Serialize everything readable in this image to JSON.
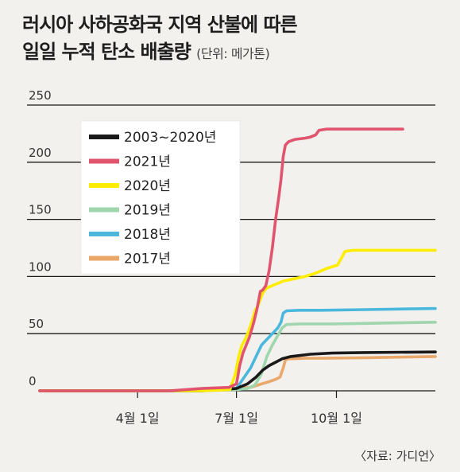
{
  "title_line1": "러시아 사하공화국 지역 산불에 따른",
  "title_line2": "일일 누적 탄소 배출량",
  "title_unit": "(단위: 메가톤)",
  "source": "〈자료: 가디언〉",
  "colors": {
    "background": "#f2f1ee",
    "grid": "#1a1a1a",
    "2003~2020년": "#1a1a1a",
    "2021년": "#e0546e",
    "2020년": "#ffed00",
    "2019년": "#9fd6ad",
    "2018년": "#4ab8dd",
    "2017년": "#e9a86a"
  },
  "chart_data": {
    "type": "line",
    "title": "러시아 사하공화국 지역 산불에 따른 일일 누적 탄소 배출량",
    "ylabel": "",
    "xlabel": "",
    "ylim": [
      0,
      250
    ],
    "yticks": [
      0,
      50,
      100,
      150,
      200,
      250
    ],
    "xlim": [
      1,
      365
    ],
    "xticks": [
      {
        "label": "4월 1일",
        "day": 91
      },
      {
        "label": "7월 1일",
        "day": 182
      },
      {
        "label": "10월 1일",
        "day": 274
      }
    ],
    "grid": true,
    "legend_position": "top-left",
    "series": [
      {
        "name": "2003~2020년",
        "points": [
          [
            1,
            0
          ],
          [
            150,
            0
          ],
          [
            182,
            2
          ],
          [
            192,
            6
          ],
          [
            200,
            12
          ],
          [
            206,
            18
          ],
          [
            212,
            22
          ],
          [
            218,
            25
          ],
          [
            224,
            28
          ],
          [
            232,
            30
          ],
          [
            250,
            32
          ],
          [
            270,
            33
          ],
          [
            300,
            33.5
          ],
          [
            365,
            34
          ]
        ]
      },
      {
        "name": "2021년",
        "points": [
          [
            1,
            0
          ],
          [
            120,
            0
          ],
          [
            150,
            2
          ],
          [
            175,
            3
          ],
          [
            182,
            6
          ],
          [
            185,
            22
          ],
          [
            188,
            33
          ],
          [
            191,
            40
          ],
          [
            194,
            47
          ],
          [
            198,
            60
          ],
          [
            201,
            72
          ],
          [
            204,
            87
          ],
          [
            206,
            88
          ],
          [
            209,
            92
          ],
          [
            212,
            105
          ],
          [
            215,
            125
          ],
          [
            218,
            150
          ],
          [
            221,
            170
          ],
          [
            223,
            185
          ],
          [
            225,
            205
          ],
          [
            227,
            215
          ],
          [
            230,
            218
          ],
          [
            236,
            220
          ],
          [
            245,
            221
          ],
          [
            250,
            222
          ],
          [
            255,
            224
          ],
          [
            258,
            228
          ],
          [
            265,
            229
          ],
          [
            300,
            229
          ],
          [
            335,
            229
          ]
        ]
      },
      {
        "name": "2020년",
        "points": [
          [
            1,
            0
          ],
          [
            150,
            0
          ],
          [
            176,
            1
          ],
          [
            181,
            15
          ],
          [
            184,
            30
          ],
          [
            187,
            40
          ],
          [
            190,
            45
          ],
          [
            193,
            52
          ],
          [
            196,
            60
          ],
          [
            199,
            70
          ],
          [
            202,
            75
          ],
          [
            204,
            80
          ],
          [
            206,
            85
          ],
          [
            208,
            88
          ],
          [
            210,
            90
          ],
          [
            215,
            92
          ],
          [
            225,
            96
          ],
          [
            235,
            98
          ],
          [
            245,
            100
          ],
          [
            255,
            103
          ],
          [
            265,
            107
          ],
          [
            275,
            110
          ],
          [
            282,
            122
          ],
          [
            290,
            123
          ],
          [
            365,
            123
          ]
        ]
      },
      {
        "name": "2019년",
        "points": [
          [
            1,
            0
          ],
          [
            150,
            0
          ],
          [
            182,
            1
          ],
          [
            192,
            2
          ],
          [
            199,
            5
          ],
          [
            205,
            15
          ],
          [
            210,
            30
          ],
          [
            215,
            40
          ],
          [
            218,
            45
          ],
          [
            221,
            50
          ],
          [
            224,
            55
          ],
          [
            228,
            58
          ],
          [
            240,
            58.5
          ],
          [
            270,
            58.5
          ],
          [
            300,
            59
          ],
          [
            365,
            60
          ]
        ]
      },
      {
        "name": "2018년",
        "points": [
          [
            1,
            0
          ],
          [
            150,
            0
          ],
          [
            182,
            2
          ],
          [
            195,
            20
          ],
          [
            205,
            40
          ],
          [
            210,
            45
          ],
          [
            215,
            50
          ],
          [
            220,
            55
          ],
          [
            223,
            60
          ],
          [
            225,
            68
          ],
          [
            228,
            70
          ],
          [
            240,
            70.5
          ],
          [
            260,
            70.5
          ],
          [
            300,
            71
          ],
          [
            365,
            72
          ]
        ]
      },
      {
        "name": "2017년",
        "points": [
          [
            1,
            0
          ],
          [
            150,
            0
          ],
          [
            182,
            2
          ],
          [
            195,
            3
          ],
          [
            205,
            6
          ],
          [
            212,
            8
          ],
          [
            218,
            10
          ],
          [
            222,
            12
          ],
          [
            225,
            20
          ],
          [
            227,
            27
          ],
          [
            230,
            28
          ],
          [
            245,
            28.5
          ],
          [
            260,
            28.5
          ],
          [
            300,
            29
          ],
          [
            365,
            30
          ]
        ]
      }
    ]
  }
}
